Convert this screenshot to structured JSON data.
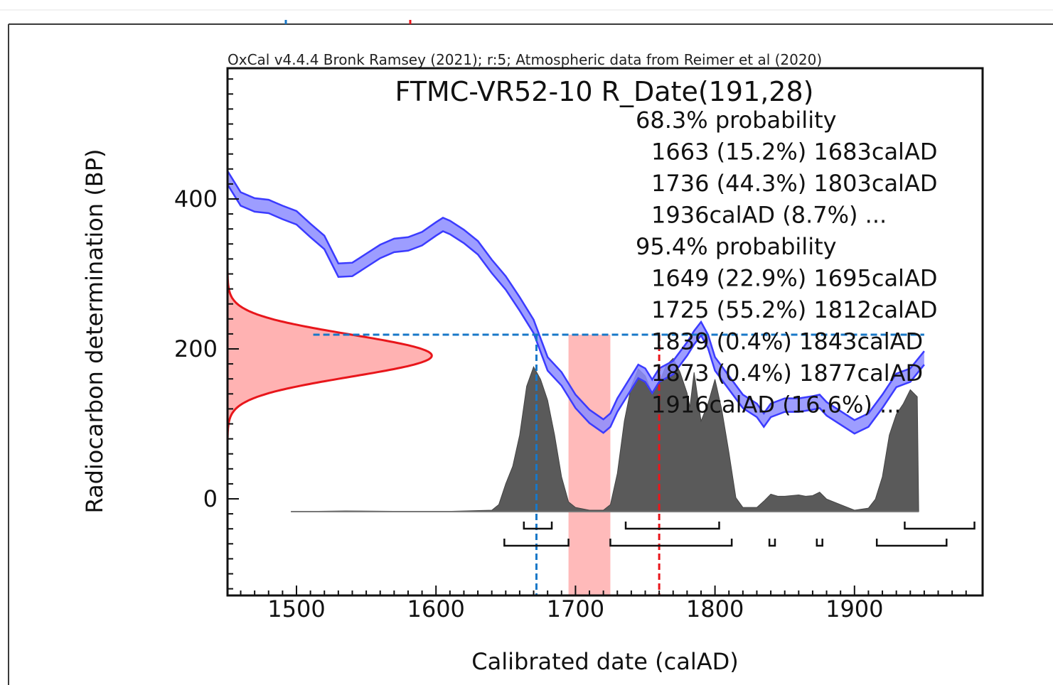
{
  "chart_data": {
    "type": "area",
    "caption": "OxCal v4.4.4 Bronk Ramsey (2021); r:5; Atmospheric data from Reimer et al (2020)",
    "title": "FTMC-VR52-10 R_Date(191,28)",
    "xlabel": "Calibrated date (calAD)",
    "ylabel": "Radiocarbon determination (BP)",
    "xlim": [
      1450,
      1990
    ],
    "ylim": [
      -130,
      580
    ],
    "x_ticks": [
      1500,
      1600,
      1700,
      1800,
      1900
    ],
    "y_ticks": [
      0,
      200,
      400
    ],
    "probability_ranges": [
      {
        "header": "68.3% probability",
        "items": [
          "1663 (15.2%) 1683calAD",
          "1736 (44.3%) 1803calAD",
          "1936calAD (8.7%) ..."
        ]
      },
      {
        "header": "95.4% probability",
        "items": [
          "1649 (22.9%) 1695calAD",
          "1725 (55.2%) 1812calAD",
          "1839 (0.4%) 1843calAD",
          "1873 (0.4%) 1877calAD",
          "1916calAD (16.6%) ..."
        ]
      }
    ],
    "calibration_curve": {
      "color": "#3b3bff",
      "fill": "#8c8cff",
      "half_width": 9,
      "points": [
        [
          1450,
          430
        ],
        [
          1460,
          400
        ],
        [
          1470,
          392
        ],
        [
          1480,
          390
        ],
        [
          1490,
          382
        ],
        [
          1500,
          375
        ],
        [
          1510,
          358
        ],
        [
          1520,
          342
        ],
        [
          1530,
          305
        ],
        [
          1540,
          306
        ],
        [
          1550,
          318
        ],
        [
          1560,
          330
        ],
        [
          1570,
          338
        ],
        [
          1580,
          340
        ],
        [
          1590,
          347
        ],
        [
          1600,
          360
        ],
        [
          1605,
          366
        ],
        [
          1610,
          362
        ],
        [
          1620,
          350
        ],
        [
          1630,
          335
        ],
        [
          1640,
          310
        ],
        [
          1650,
          288
        ],
        [
          1660,
          260
        ],
        [
          1670,
          230
        ],
        [
          1675,
          205
        ],
        [
          1680,
          180
        ],
        [
          1690,
          160
        ],
        [
          1700,
          130
        ],
        [
          1710,
          110
        ],
        [
          1720,
          97
        ],
        [
          1725,
          105
        ],
        [
          1730,
          125
        ],
        [
          1740,
          155
        ],
        [
          1745,
          170
        ],
        [
          1750,
          165
        ],
        [
          1755,
          150
        ],
        [
          1760,
          165
        ],
        [
          1770,
          175
        ],
        [
          1780,
          200
        ],
        [
          1785,
          215
        ],
        [
          1790,
          227
        ],
        [
          1795,
          210
        ],
        [
          1800,
          180
        ],
        [
          1810,
          155
        ],
        [
          1820,
          130
        ],
        [
          1830,
          118
        ],
        [
          1835,
          105
        ],
        [
          1840,
          118
        ],
        [
          1850,
          125
        ],
        [
          1860,
          125
        ],
        [
          1870,
          128
        ],
        [
          1875,
          130
        ],
        [
          1880,
          120
        ],
        [
          1890,
          108
        ],
        [
          1900,
          96
        ],
        [
          1910,
          105
        ],
        [
          1920,
          130
        ],
        [
          1930,
          158
        ],
        [
          1940,
          165
        ],
        [
          1950,
          188
        ]
      ]
    },
    "radiocarbon_distribution": {
      "color": "#e8161b",
      "fill": "#ffb2b2",
      "mean": 191,
      "sd": 28,
      "peak_date": 1597
    },
    "calibrated_distribution": {
      "color": "#5a5a5a",
      "points": [
        [
          1496,
          0
        ],
        [
          1535,
          1
        ],
        [
          1600,
          0
        ],
        [
          1640,
          2
        ],
        [
          1645,
          10
        ],
        [
          1650,
          40
        ],
        [
          1655,
          65
        ],
        [
          1660,
          110
        ],
        [
          1665,
          180
        ],
        [
          1670,
          208
        ],
        [
          1675,
          190
        ],
        [
          1680,
          160
        ],
        [
          1685,
          110
        ],
        [
          1690,
          50
        ],
        [
          1695,
          14
        ],
        [
          1700,
          6
        ],
        [
          1710,
          2
        ],
        [
          1720,
          2
        ],
        [
          1725,
          10
        ],
        [
          1730,
          55
        ],
        [
          1735,
          130
        ],
        [
          1740,
          180
        ],
        [
          1745,
          205
        ],
        [
          1750,
          195
        ],
        [
          1755,
          170
        ],
        [
          1760,
          185
        ],
        [
          1765,
          210
        ],
        [
          1770,
          220
        ],
        [
          1775,
          200
        ],
        [
          1780,
          170
        ],
        [
          1782,
          150
        ],
        [
          1785,
          200
        ],
        [
          1790,
          130
        ],
        [
          1795,
          155
        ],
        [
          1800,
          190
        ],
        [
          1805,
          145
        ],
        [
          1810,
          85
        ],
        [
          1815,
          20
        ],
        [
          1820,
          6
        ],
        [
          1830,
          6
        ],
        [
          1835,
          15
        ],
        [
          1840,
          25
        ],
        [
          1845,
          22
        ],
        [
          1850,
          22
        ],
        [
          1860,
          24
        ],
        [
          1865,
          22
        ],
        [
          1870,
          23
        ],
        [
          1875,
          28
        ],
        [
          1880,
          18
        ],
        [
          1890,
          10
        ],
        [
          1900,
          2
        ],
        [
          1910,
          5
        ],
        [
          1915,
          18
        ],
        [
          1920,
          50
        ],
        [
          1925,
          110
        ],
        [
          1930,
          140
        ],
        [
          1935,
          155
        ],
        [
          1940,
          175
        ],
        [
          1945,
          165
        ],
        [
          1946,
          0
        ]
      ]
    },
    "range_bars": {
      "p68": [
        [
          1663,
          1683
        ],
        [
          1736,
          1803
        ],
        [
          1936,
          1986
        ]
      ],
      "p95": [
        [
          1649,
          1695
        ],
        [
          1725,
          1812
        ],
        [
          1839,
          1843
        ],
        [
          1873,
          1877
        ],
        [
          1916,
          1966
        ]
      ]
    },
    "highlight_band": {
      "x": [
        1695,
        1725
      ],
      "color": "#ffb2b2"
    },
    "guides": {
      "horizontal_y": 219,
      "horizontal_from_x": 1512,
      "horizontal_to_x": 1950,
      "blue_vertical_x": 1672,
      "red_vertical_x": 1760,
      "blue_color": "#1878c8",
      "red_color": "#e8161b"
    }
  }
}
